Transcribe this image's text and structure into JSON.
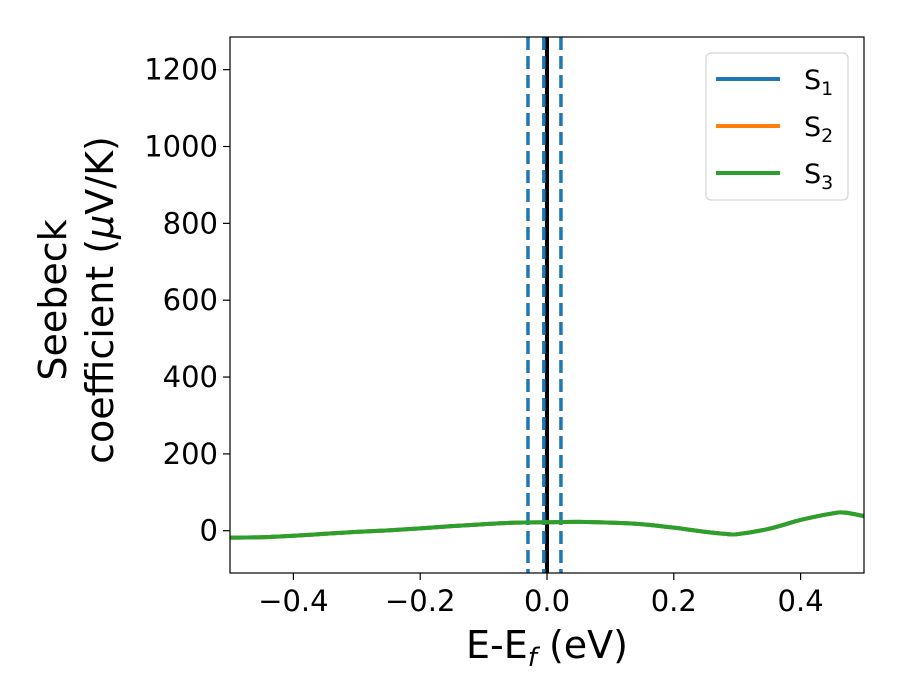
{
  "chart_data": {
    "type": "line",
    "xlabel": {
      "main": "E-E",
      "sub": "f",
      "unit": " (eV)"
    },
    "ylabel": {
      "line1": "Seebeck",
      "line2": "coefficient  (",
      "mu": "μ",
      "line2_end": "V/K)"
    },
    "xlim": [
      -0.5,
      0.5
    ],
    "ylim": [
      -110,
      1285
    ],
    "xticks": [
      -0.4,
      -0.2,
      0.0,
      0.2,
      0.4
    ],
    "xtick_labels": [
      "−0.4",
      "−0.2",
      "0.0",
      "0.2",
      "0.4"
    ],
    "yticks": [
      0,
      200,
      400,
      600,
      800,
      1000,
      1200
    ],
    "ytick_labels": [
      "0",
      "200",
      "400",
      "600",
      "800",
      "1000",
      "1200"
    ],
    "grid": false,
    "legend_position": "top-right",
    "series": [
      {
        "name": "S",
        "sub": "1",
        "color": "#1f77b4",
        "x": [
          -0.5,
          -0.45,
          -0.4,
          -0.35,
          -0.3,
          -0.25,
          -0.2,
          -0.15,
          -0.1,
          -0.05,
          0.0,
          0.05,
          0.1,
          0.15,
          0.2,
          0.25,
          0.28,
          0.3,
          0.35,
          0.4,
          0.45,
          0.47,
          0.5
        ],
        "y": [
          -18,
          -17,
          -13,
          -8,
          -3,
          1,
          6,
          12,
          17,
          21,
          22,
          23,
          21,
          17,
          8,
          -3,
          -8,
          -9,
          5,
          28,
          45,
          47,
          38
        ]
      },
      {
        "name": "S",
        "sub": "2",
        "color": "#ff7f0e",
        "x": [
          -0.5,
          -0.45,
          -0.4,
          -0.35,
          -0.3,
          -0.25,
          -0.2,
          -0.15,
          -0.1,
          -0.05,
          0.0,
          0.05,
          0.1,
          0.15,
          0.2,
          0.25,
          0.28,
          0.3,
          0.35,
          0.4,
          0.45,
          0.47,
          0.5
        ],
        "y": [
          -18,
          -17,
          -13,
          -8,
          -3,
          1,
          6,
          12,
          17,
          21,
          22,
          23,
          21,
          17,
          8,
          -3,
          -8,
          -9,
          5,
          28,
          45,
          47,
          38
        ]
      },
      {
        "name": "S",
        "sub": "3",
        "color": "#2ca02c",
        "x": [
          -0.5,
          -0.45,
          -0.4,
          -0.35,
          -0.3,
          -0.25,
          -0.2,
          -0.15,
          -0.1,
          -0.05,
          0.0,
          0.05,
          0.1,
          0.15,
          0.2,
          0.25,
          0.28,
          0.3,
          0.35,
          0.4,
          0.45,
          0.47,
          0.5
        ],
        "y": [
          -18,
          -17,
          -13,
          -8,
          -3,
          1,
          6,
          12,
          17,
          21,
          22,
          23,
          21,
          17,
          8,
          -3,
          -8,
          -9,
          5,
          28,
          45,
          47,
          38
        ]
      }
    ],
    "vlines": [
      {
        "x": 0.0,
        "style": "solid",
        "color": "#000000"
      },
      {
        "x": -0.03,
        "style": "dashed",
        "color": "#1f77b4"
      },
      {
        "x": -0.005,
        "style": "dashed",
        "color": "#1f77b4"
      },
      {
        "x": 0.022,
        "style": "dashed",
        "color": "#1f77b4"
      }
    ]
  }
}
